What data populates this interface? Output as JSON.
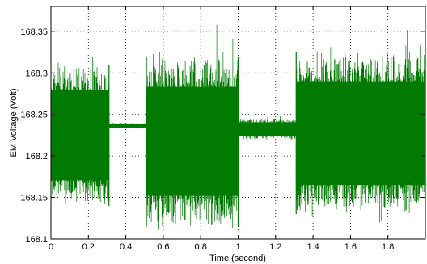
{
  "chart_data": {
    "type": "line",
    "title": "",
    "xlabel": "Time (second)",
    "ylabel": "EM Voltage (Volt)",
    "xlim": [
      0,
      2
    ],
    "ylim": [
      168.1,
      168.38
    ],
    "xticks": [
      0,
      0.2,
      0.4,
      0.6,
      0.8,
      1,
      1.2,
      1.4,
      1.6,
      1.8
    ],
    "xtick_labels": [
      "0",
      "0.2",
      "0.4",
      "0.6",
      "0.8",
      "1",
      "1.2",
      "1.4",
      "1.6",
      "1.8"
    ],
    "yticks": [
      168.1,
      168.15,
      168.2,
      168.25,
      168.3,
      168.35
    ],
    "ytick_labels": [
      "168.1",
      "168.15",
      "168.2",
      "168.25",
      "168.3",
      "168.35"
    ],
    "grid": true,
    "grid_style": "dotted",
    "series": [
      {
        "color": "#007a00",
        "envelope": [
          {
            "x_start": 0.0,
            "x_end": 0.31,
            "upper": 168.31,
            "lower": 168.14
          },
          {
            "x_start": 0.31,
            "x_end": 0.51,
            "upper": 168.24,
            "lower": 168.233
          },
          {
            "x_start": 0.51,
            "x_end": 1.0,
            "upper": 168.32,
            "lower": 168.115
          },
          {
            "x_start": 1.0,
            "x_end": 1.31,
            "upper": 168.245,
            "lower": 168.22
          },
          {
            "x_start": 1.31,
            "x_end": 2.0,
            "upper": 168.325,
            "lower": 168.13
          }
        ]
      }
    ]
  }
}
